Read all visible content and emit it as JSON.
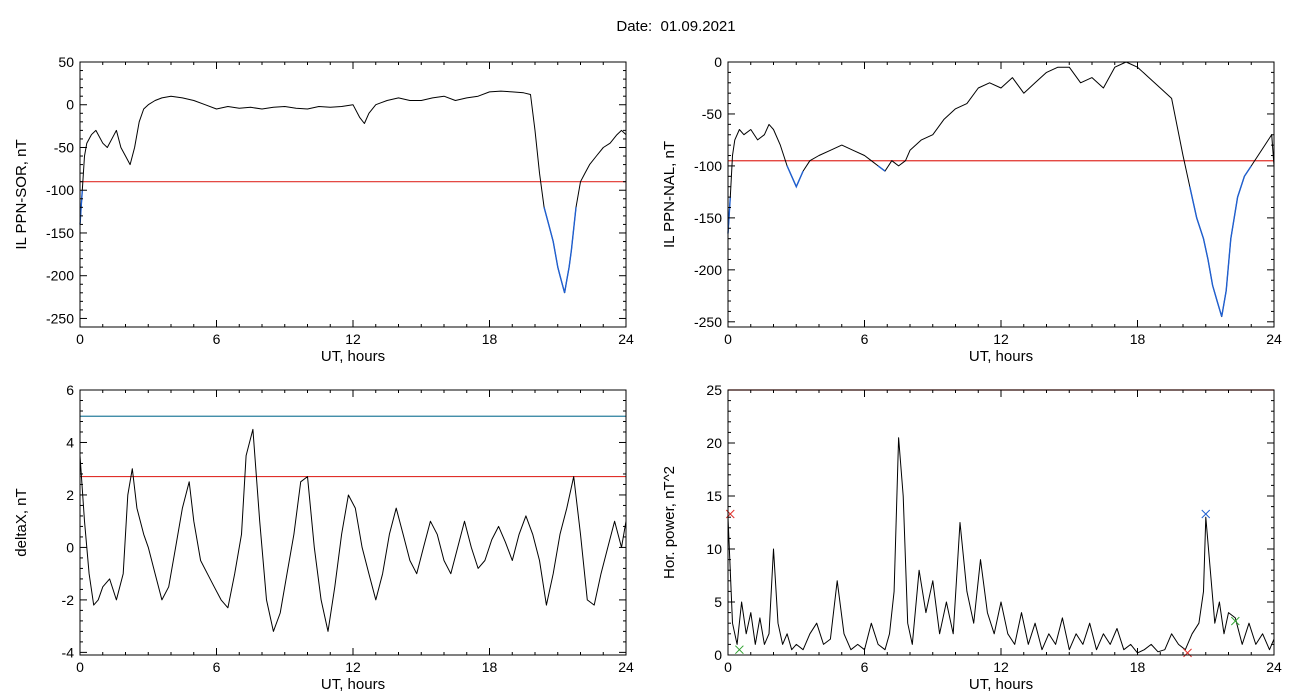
{
  "title": "Date:  01.09.2021",
  "chart_data": [
    {
      "type": "line",
      "xlabel": "UT, hours",
      "ylabel": "IL PPN-SOR, nT",
      "xlim": [
        0,
        24
      ],
      "ylim": [
        -260,
        50
      ],
      "xticks": [
        0,
        6,
        12,
        18,
        24
      ],
      "yticks": [
        -250,
        -200,
        -150,
        -100,
        -50,
        0,
        50
      ],
      "threshold_color": "#e0302a",
      "highlight_color": "#1f5fd0",
      "threshold": -90,
      "series": [
        {
          "x": [
            0,
            0.1,
            0.2,
            0.3,
            0.5,
            0.7,
            1.0,
            1.2,
            1.5,
            1.6,
            1.8,
            2.0,
            2.2,
            2.4,
            2.6,
            2.8,
            3.0,
            3.3,
            3.6,
            4.0,
            4.5,
            5.0,
            5.5,
            6.0,
            6.5,
            7.0,
            7.5,
            8.0,
            8.5,
            9.0,
            9.5,
            10.0,
            10.5,
            11.0,
            11.5,
            12.0,
            12.3,
            12.5,
            12.7,
            13.0,
            13.5,
            14.0,
            14.5,
            15.0,
            15.5,
            16.0,
            16.5,
            17.0,
            17.5,
            18.0,
            18.5,
            19.0,
            19.5,
            19.8,
            20.0,
            20.2,
            20.4,
            20.6,
            20.8,
            21.0,
            21.1,
            21.2,
            21.3,
            21.4,
            21.5,
            21.6,
            21.8,
            22.0,
            22.2,
            22.4,
            22.7,
            23.0,
            23.3,
            23.6,
            23.8,
            24.0
          ],
          "y": [
            -140,
            -100,
            -60,
            -45,
            -35,
            -30,
            -45,
            -50,
            -35,
            -30,
            -50,
            -60,
            -70,
            -50,
            -20,
            -5,
            0,
            5,
            8,
            10,
            8,
            5,
            0,
            -5,
            -2,
            -4,
            -3,
            -5,
            -3,
            -2,
            -4,
            -5,
            -2,
            -3,
            -2,
            0,
            -15,
            -22,
            -10,
            0,
            5,
            8,
            5,
            5,
            8,
            10,
            5,
            8,
            10,
            15,
            16,
            15,
            14,
            12,
            -30,
            -80,
            -120,
            -140,
            -160,
            -190,
            -200,
            -210,
            -220,
            -205,
            -190,
            -170,
            -120,
            -90,
            -80,
            -70,
            -60,
            -50,
            -45,
            -35,
            -30,
            -35
          ]
        }
      ]
    },
    {
      "type": "line",
      "xlabel": "UT, hours",
      "ylabel": "IL PPN-NAL, nT",
      "xlim": [
        0,
        24
      ],
      "ylim": [
        -255,
        0
      ],
      "xticks": [
        0,
        6,
        12,
        18,
        24
      ],
      "yticks": [
        -250,
        -200,
        -150,
        -100,
        -50,
        0
      ],
      "threshold_color": "#e0302a",
      "highlight_color": "#1f5fd0",
      "threshold": -95,
      "series": [
        {
          "x": [
            0,
            0.1,
            0.2,
            0.3,
            0.5,
            0.7,
            1.0,
            1.3,
            1.6,
            1.8,
            2.0,
            2.3,
            2.6,
            2.8,
            3.0,
            3.3,
            3.6,
            4.0,
            4.5,
            5.0,
            5.5,
            6.0,
            6.3,
            6.6,
            6.9,
            7.2,
            7.5,
            7.8,
            8.0,
            8.5,
            9.0,
            9.5,
            10.0,
            10.5,
            11.0,
            11.5,
            12.0,
            12.5,
            13.0,
            13.5,
            14.0,
            14.5,
            15.0,
            15.5,
            16.0,
            16.5,
            17.0,
            17.5,
            18.0,
            18.5,
            19.0,
            19.5,
            20.0,
            20.3,
            20.6,
            20.9,
            21.1,
            21.3,
            21.5,
            21.7,
            21.9,
            22.1,
            22.4,
            22.7,
            23.0,
            23.3,
            23.6,
            23.9,
            24.0
          ],
          "y": [
            -165,
            -130,
            -90,
            -75,
            -65,
            -70,
            -65,
            -75,
            -70,
            -60,
            -65,
            -80,
            -100,
            -110,
            -120,
            -105,
            -95,
            -90,
            -85,
            -80,
            -85,
            -90,
            -95,
            -100,
            -105,
            -95,
            -100,
            -95,
            -85,
            -75,
            -70,
            -55,
            -45,
            -40,
            -25,
            -20,
            -25,
            -15,
            -30,
            -20,
            -10,
            -5,
            -5,
            -20,
            -15,
            -25,
            -5,
            0,
            -5,
            -15,
            -25,
            -35,
            -90,
            -120,
            -150,
            -170,
            -190,
            -215,
            -230,
            -245,
            -220,
            -170,
            -130,
            -110,
            -100,
            -90,
            -80,
            -70,
            -100
          ]
        }
      ]
    },
    {
      "type": "line",
      "xlabel": "UT, hours",
      "ylabel": "deltaX, nT",
      "xlim": [
        0,
        24
      ],
      "ylim": [
        -4.1,
        6
      ],
      "xticks": [
        0,
        6,
        12,
        18,
        24
      ],
      "yticks": [
        -4,
        -2,
        0,
        2,
        4,
        6
      ],
      "threshold_color": "#e0302a",
      "second_threshold_color": "#2a7f9e",
      "threshold": 2.7,
      "second_threshold": 5.0,
      "series": [
        {
          "x": [
            0,
            0.2,
            0.4,
            0.6,
            0.8,
            1.0,
            1.3,
            1.6,
            1.9,
            2.1,
            2.3,
            2.5,
            2.8,
            3.0,
            3.3,
            3.6,
            3.9,
            4.2,
            4.5,
            4.8,
            5.0,
            5.3,
            5.6,
            5.9,
            6.2,
            6.5,
            6.8,
            7.1,
            7.3,
            7.6,
            7.9,
            8.2,
            8.5,
            8.8,
            9.1,
            9.4,
            9.7,
            10.0,
            10.3,
            10.6,
            10.9,
            11.2,
            11.5,
            11.8,
            12.1,
            12.4,
            12.7,
            13.0,
            13.3,
            13.6,
            13.9,
            14.2,
            14.5,
            14.8,
            15.1,
            15.4,
            15.7,
            16.0,
            16.3,
            16.6,
            16.9,
            17.2,
            17.5,
            17.8,
            18.1,
            18.4,
            18.7,
            19.0,
            19.3,
            19.6,
            19.9,
            20.2,
            20.5,
            20.8,
            21.1,
            21.4,
            21.7,
            22.0,
            22.3,
            22.6,
            22.9,
            23.2,
            23.5,
            23.8,
            24.0
          ],
          "y": [
            3.5,
            1.0,
            -1.0,
            -2.2,
            -2.0,
            -1.5,
            -1.2,
            -2.0,
            -1.0,
            2.0,
            3.0,
            1.5,
            0.5,
            0.0,
            -1.0,
            -2.0,
            -1.5,
            0.0,
            1.5,
            2.5,
            1.0,
            -0.5,
            -1.0,
            -1.5,
            -2.0,
            -2.3,
            -1.0,
            0.5,
            3.5,
            4.5,
            1.0,
            -2.0,
            -3.2,
            -2.5,
            -1.0,
            0.5,
            2.5,
            2.7,
            0.0,
            -2.0,
            -3.2,
            -1.5,
            0.5,
            2.0,
            1.5,
            0.0,
            -1.0,
            -2.0,
            -1.0,
            0.5,
            1.5,
            0.5,
            -0.5,
            -1.0,
            0.0,
            1.0,
            0.5,
            -0.5,
            -1.0,
            0.0,
            1.0,
            0.0,
            -0.8,
            -0.5,
            0.3,
            0.8,
            0.2,
            -0.5,
            0.5,
            1.2,
            0.5,
            -0.5,
            -2.2,
            -1.0,
            0.5,
            1.5,
            2.7,
            0.5,
            -2.0,
            -2.2,
            -1.0,
            0.0,
            1.0,
            0.0,
            1.0
          ]
        }
      ]
    },
    {
      "type": "line",
      "xlabel": "UT, hours",
      "ylabel": "Hor. power, nT^2",
      "xlim": [
        0,
        24
      ],
      "ylim": [
        0,
        25
      ],
      "xticks": [
        0,
        6,
        12,
        18,
        24
      ],
      "yticks": [
        0,
        5,
        10,
        15,
        20,
        25
      ],
      "threshold_color": "#e0302a",
      "threshold": 25,
      "series": [
        {
          "x": [
            0,
            0.2,
            0.4,
            0.6,
            0.8,
            1.0,
            1.2,
            1.4,
            1.6,
            1.8,
            2.0,
            2.2,
            2.4,
            2.6,
            2.8,
            3.0,
            3.3,
            3.6,
            3.9,
            4.2,
            4.5,
            4.8,
            5.1,
            5.4,
            5.7,
            6.0,
            6.3,
            6.6,
            6.9,
            7.1,
            7.3,
            7.5,
            7.7,
            7.9,
            8.1,
            8.4,
            8.7,
            9.0,
            9.3,
            9.6,
            9.9,
            10.2,
            10.5,
            10.8,
            11.1,
            11.4,
            11.7,
            12.0,
            12.3,
            12.6,
            12.9,
            13.2,
            13.5,
            13.8,
            14.1,
            14.4,
            14.7,
            15.0,
            15.3,
            15.6,
            15.9,
            16.2,
            16.5,
            16.8,
            17.1,
            17.4,
            17.7,
            18.0,
            18.3,
            18.6,
            18.9,
            19.2,
            19.5,
            19.8,
            20.1,
            20.4,
            20.7,
            20.9,
            21.0,
            21.2,
            21.4,
            21.6,
            21.8,
            22.0,
            22.3,
            22.6,
            22.9,
            23.2,
            23.5,
            23.8,
            24.0
          ],
          "y": [
            13.0,
            3.0,
            1.0,
            5.0,
            2.0,
            4.0,
            1.0,
            3.5,
            1.0,
            2.0,
            10.0,
            3.0,
            1.0,
            2.0,
            0.5,
            1.0,
            0.5,
            2.0,
            3.0,
            1.0,
            1.5,
            7.0,
            2.0,
            0.5,
            1.0,
            0.5,
            3.0,
            1.0,
            0.5,
            2.0,
            6.0,
            20.5,
            15.0,
            3.0,
            1.0,
            8.0,
            4.0,
            7.0,
            2.0,
            5.0,
            2.0,
            12.5,
            6.0,
            3.0,
            9.0,
            4.0,
            2.0,
            5.0,
            2.0,
            1.0,
            4.0,
            1.0,
            3.0,
            0.5,
            2.0,
            1.0,
            3.5,
            0.5,
            2.0,
            1.0,
            3.0,
            0.5,
            2.0,
            1.0,
            2.5,
            0.5,
            1.0,
            0.2,
            0.5,
            1.0,
            0.3,
            0.5,
            2.0,
            1.0,
            0.5,
            2.0,
            3.0,
            6.0,
            13.0,
            8.0,
            3.0,
            5.0,
            2.0,
            4.0,
            3.5,
            1.0,
            3.0,
            1.0,
            2.0,
            0.5,
            1.5
          ]
        }
      ],
      "markers": [
        {
          "x": 21.0,
          "y": 13.3,
          "color": "#1f5fd0"
        },
        {
          "x": 0.1,
          "y": 13.3,
          "color": "#e0302a"
        },
        {
          "x": 0.5,
          "y": 0.5,
          "color": "#2aa02a"
        },
        {
          "x": 22.3,
          "y": 3.2,
          "color": "#2aa02a"
        },
        {
          "x": 20.2,
          "y": 0.2,
          "color": "#e0302a"
        }
      ]
    }
  ]
}
